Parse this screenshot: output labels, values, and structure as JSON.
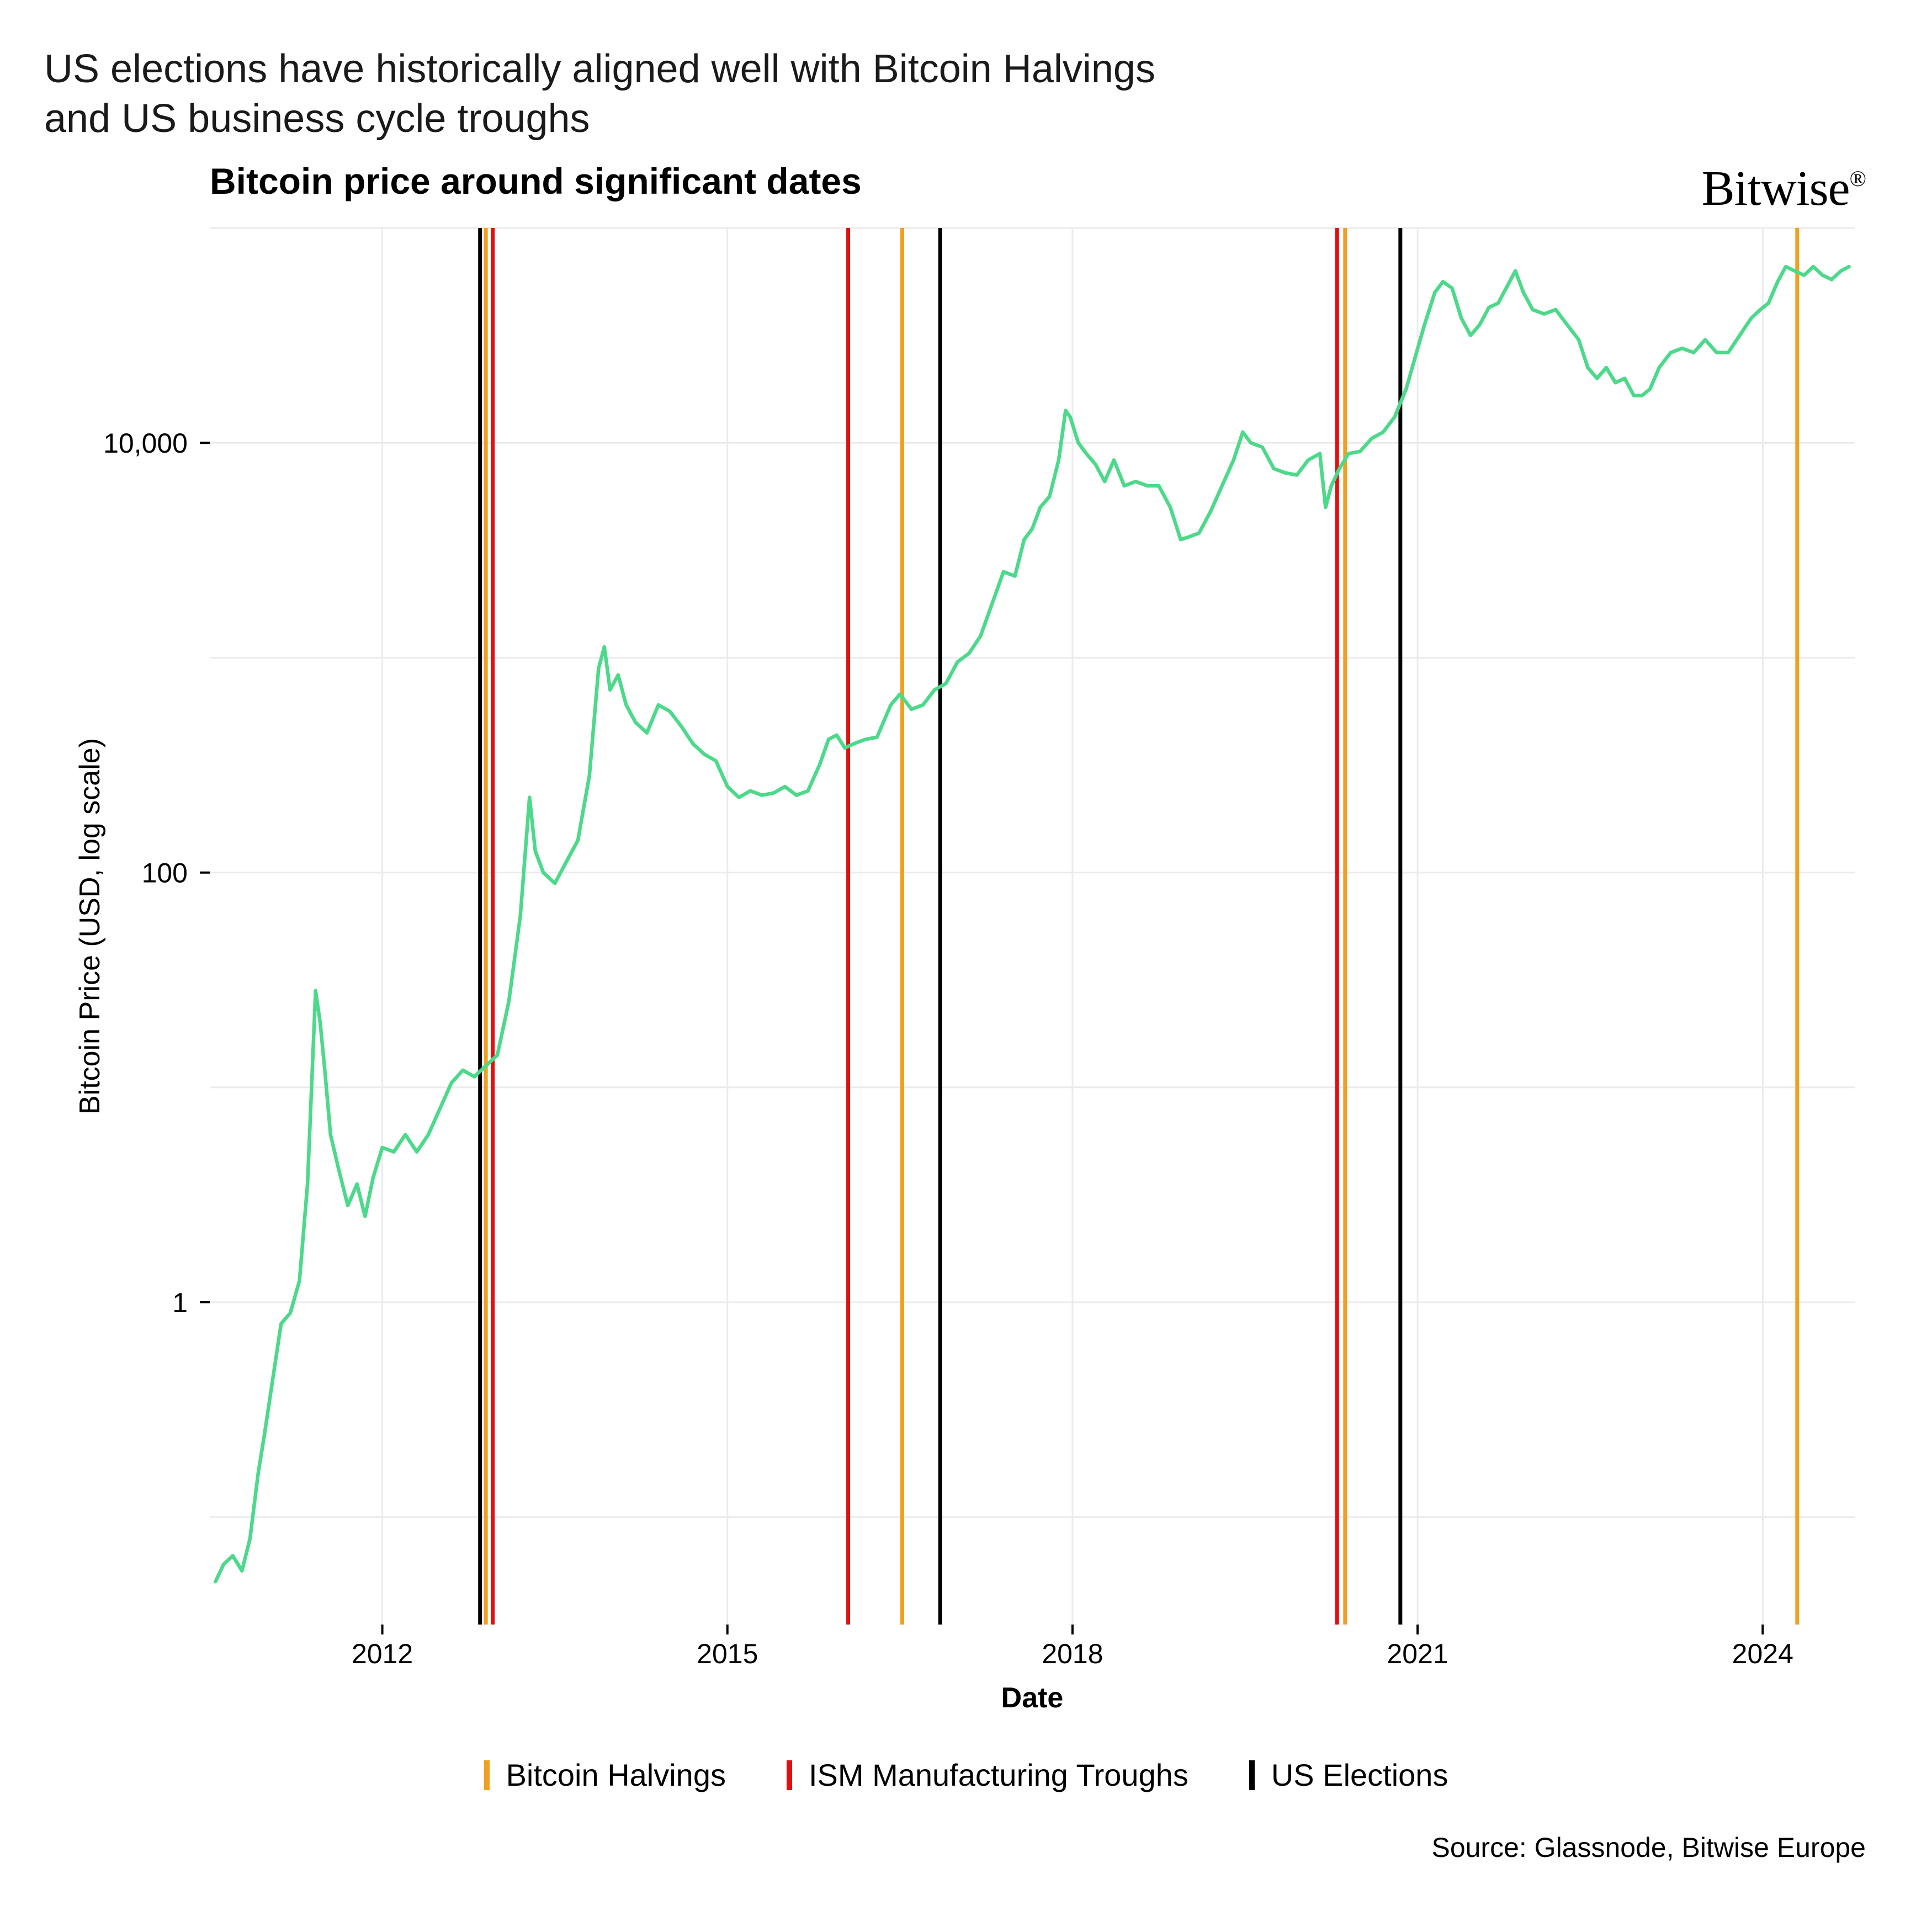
{
  "title_line1": "US elections have historically aligned well with Bitcoin Halvings",
  "title_line2": " and US business cycle troughs",
  "chart_title": "Bitcoin price around significant dates",
  "brand": "Bitwise",
  "source": "Source: Glassnode, Bitwise Europe",
  "xlabel": "Date",
  "ylabel": "Bitcoin Price (USD, log scale)",
  "chart": {
    "type": "line-log",
    "background_color": "#ffffff",
    "panel_color": "#ffffff",
    "grid_color": "#ebebeb",
    "text_color": "#000000",
    "line_color": "#4cd98a",
    "line_width": 6.5,
    "vline_width": 7,
    "axis_tick_fontsize": 50,
    "axis_label_fontsize": 52,
    "chart_title_fontsize": 66,
    "x": {
      "min": 2010.5,
      "max": 2024.8,
      "ticks": [
        2012,
        2015,
        2018,
        2021,
        2024
      ]
    },
    "y": {
      "log": true,
      "min_exp": -1.5,
      "max_exp": 5.0,
      "ticks_exp": [
        0,
        2,
        4
      ],
      "tick_labels": [
        "1",
        "100",
        "10,000"
      ]
    },
    "vlines": {
      "halvings": {
        "color": "#f0a020",
        "years": [
          2012.9,
          2016.52,
          2020.37,
          2024.3
        ]
      },
      "ism": {
        "color": "#e01010",
        "years": [
          2012.96,
          2016.05,
          2020.3
        ]
      },
      "elections": {
        "color": "#000000",
        "years": [
          2012.85,
          2016.85,
          2020.85
        ]
      }
    },
    "series": [
      [
        2010.55,
        -1.3
      ],
      [
        2010.62,
        -1.22
      ],
      [
        2010.7,
        -1.18
      ],
      [
        2010.78,
        -1.25
      ],
      [
        2010.85,
        -1.1
      ],
      [
        2010.92,
        -0.8
      ],
      [
        2010.98,
        -0.6
      ],
      [
        2011.05,
        -0.35
      ],
      [
        2011.12,
        -0.1
      ],
      [
        2011.2,
        -0.05
      ],
      [
        2011.28,
        0.1
      ],
      [
        2011.35,
        0.55
      ],
      [
        2011.42,
        1.45
      ],
      [
        2011.46,
        1.3
      ],
      [
        2011.5,
        1.08
      ],
      [
        2011.55,
        0.78
      ],
      [
        2011.62,
        0.62
      ],
      [
        2011.7,
        0.45
      ],
      [
        2011.78,
        0.55
      ],
      [
        2011.85,
        0.4
      ],
      [
        2011.92,
        0.58
      ],
      [
        2012.0,
        0.72
      ],
      [
        2012.1,
        0.7
      ],
      [
        2012.2,
        0.78
      ],
      [
        2012.3,
        0.7
      ],
      [
        2012.4,
        0.78
      ],
      [
        2012.5,
        0.9
      ],
      [
        2012.6,
        1.02
      ],
      [
        2012.7,
        1.08
      ],
      [
        2012.8,
        1.05
      ],
      [
        2012.9,
        1.1
      ],
      [
        2013.0,
        1.15
      ],
      [
        2013.1,
        1.4
      ],
      [
        2013.2,
        1.8
      ],
      [
        2013.28,
        2.35
      ],
      [
        2013.33,
        2.1
      ],
      [
        2013.4,
        2.0
      ],
      [
        2013.5,
        1.95
      ],
      [
        2013.6,
        2.05
      ],
      [
        2013.7,
        2.15
      ],
      [
        2013.8,
        2.45
      ],
      [
        2013.88,
        2.95
      ],
      [
        2013.93,
        3.05
      ],
      [
        2013.98,
        2.85
      ],
      [
        2014.05,
        2.92
      ],
      [
        2014.12,
        2.78
      ],
      [
        2014.2,
        2.7
      ],
      [
        2014.3,
        2.65
      ],
      [
        2014.4,
        2.78
      ],
      [
        2014.5,
        2.75
      ],
      [
        2014.6,
        2.68
      ],
      [
        2014.7,
        2.6
      ],
      [
        2014.8,
        2.55
      ],
      [
        2014.9,
        2.52
      ],
      [
        2015.0,
        2.4
      ],
      [
        2015.1,
        2.35
      ],
      [
        2015.2,
        2.38
      ],
      [
        2015.3,
        2.36
      ],
      [
        2015.4,
        2.37
      ],
      [
        2015.5,
        2.4
      ],
      [
        2015.6,
        2.36
      ],
      [
        2015.7,
        2.38
      ],
      [
        2015.8,
        2.5
      ],
      [
        2015.88,
        2.62
      ],
      [
        2015.95,
        2.64
      ],
      [
        2016.02,
        2.58
      ],
      [
        2016.1,
        2.6
      ],
      [
        2016.2,
        2.62
      ],
      [
        2016.3,
        2.63
      ],
      [
        2016.42,
        2.78
      ],
      [
        2016.5,
        2.83
      ],
      [
        2016.6,
        2.76
      ],
      [
        2016.7,
        2.78
      ],
      [
        2016.8,
        2.85
      ],
      [
        2016.9,
        2.88
      ],
      [
        2017.0,
        2.98
      ],
      [
        2017.1,
        3.02
      ],
      [
        2017.2,
        3.1
      ],
      [
        2017.3,
        3.25
      ],
      [
        2017.4,
        3.4
      ],
      [
        2017.5,
        3.38
      ],
      [
        2017.58,
        3.55
      ],
      [
        2017.65,
        3.6
      ],
      [
        2017.72,
        3.7
      ],
      [
        2017.8,
        3.75
      ],
      [
        2017.88,
        3.92
      ],
      [
        2017.94,
        4.15
      ],
      [
        2017.98,
        4.12
      ],
      [
        2018.05,
        4.0
      ],
      [
        2018.12,
        3.95
      ],
      [
        2018.2,
        3.9
      ],
      [
        2018.28,
        3.82
      ],
      [
        2018.36,
        3.92
      ],
      [
        2018.45,
        3.8
      ],
      [
        2018.55,
        3.82
      ],
      [
        2018.65,
        3.8
      ],
      [
        2018.75,
        3.8
      ],
      [
        2018.85,
        3.7
      ],
      [
        2018.94,
        3.55
      ],
      [
        2019.0,
        3.56
      ],
      [
        2019.1,
        3.58
      ],
      [
        2019.2,
        3.68
      ],
      [
        2019.3,
        3.8
      ],
      [
        2019.4,
        3.92
      ],
      [
        2019.48,
        4.05
      ],
      [
        2019.55,
        4.0
      ],
      [
        2019.65,
        3.98
      ],
      [
        2019.75,
        3.88
      ],
      [
        2019.85,
        3.86
      ],
      [
        2019.95,
        3.85
      ],
      [
        2020.05,
        3.92
      ],
      [
        2020.15,
        3.95
      ],
      [
        2020.2,
        3.7
      ],
      [
        2020.25,
        3.8
      ],
      [
        2020.32,
        3.88
      ],
      [
        2020.4,
        3.95
      ],
      [
        2020.5,
        3.96
      ],
      [
        2020.6,
        4.02
      ],
      [
        2020.7,
        4.05
      ],
      [
        2020.8,
        4.12
      ],
      [
        2020.9,
        4.25
      ],
      [
        2020.98,
        4.4
      ],
      [
        2021.06,
        4.55
      ],
      [
        2021.15,
        4.7
      ],
      [
        2021.22,
        4.75
      ],
      [
        2021.3,
        4.72
      ],
      [
        2021.38,
        4.58
      ],
      [
        2021.46,
        4.5
      ],
      [
        2021.54,
        4.55
      ],
      [
        2021.62,
        4.63
      ],
      [
        2021.7,
        4.65
      ],
      [
        2021.78,
        4.73
      ],
      [
        2021.85,
        4.8
      ],
      [
        2021.92,
        4.7
      ],
      [
        2022.0,
        4.62
      ],
      [
        2022.1,
        4.6
      ],
      [
        2022.2,
        4.62
      ],
      [
        2022.3,
        4.55
      ],
      [
        2022.4,
        4.48
      ],
      [
        2022.48,
        4.35
      ],
      [
        2022.56,
        4.3
      ],
      [
        2022.64,
        4.35
      ],
      [
        2022.72,
        4.28
      ],
      [
        2022.8,
        4.3
      ],
      [
        2022.88,
        4.22
      ],
      [
        2022.95,
        4.22
      ],
      [
        2023.02,
        4.25
      ],
      [
        2023.1,
        4.35
      ],
      [
        2023.2,
        4.42
      ],
      [
        2023.3,
        4.44
      ],
      [
        2023.4,
        4.42
      ],
      [
        2023.5,
        4.48
      ],
      [
        2023.6,
        4.42
      ],
      [
        2023.7,
        4.42
      ],
      [
        2023.8,
        4.5
      ],
      [
        2023.9,
        4.58
      ],
      [
        2023.98,
        4.62
      ],
      [
        2024.05,
        4.65
      ],
      [
        2024.13,
        4.75
      ],
      [
        2024.2,
        4.82
      ],
      [
        2024.28,
        4.8
      ],
      [
        2024.36,
        4.78
      ],
      [
        2024.44,
        4.82
      ],
      [
        2024.52,
        4.78
      ],
      [
        2024.6,
        4.76
      ],
      [
        2024.68,
        4.8
      ],
      [
        2024.75,
        4.82
      ]
    ]
  },
  "legend": {
    "items": [
      {
        "label": "Bitcoin Halvings",
        "color": "#f0a020"
      },
      {
        "label": "ISM Manufacturing Troughs",
        "color": "#e01010"
      },
      {
        "label": "US Elections",
        "color": "#000000"
      }
    ]
  }
}
